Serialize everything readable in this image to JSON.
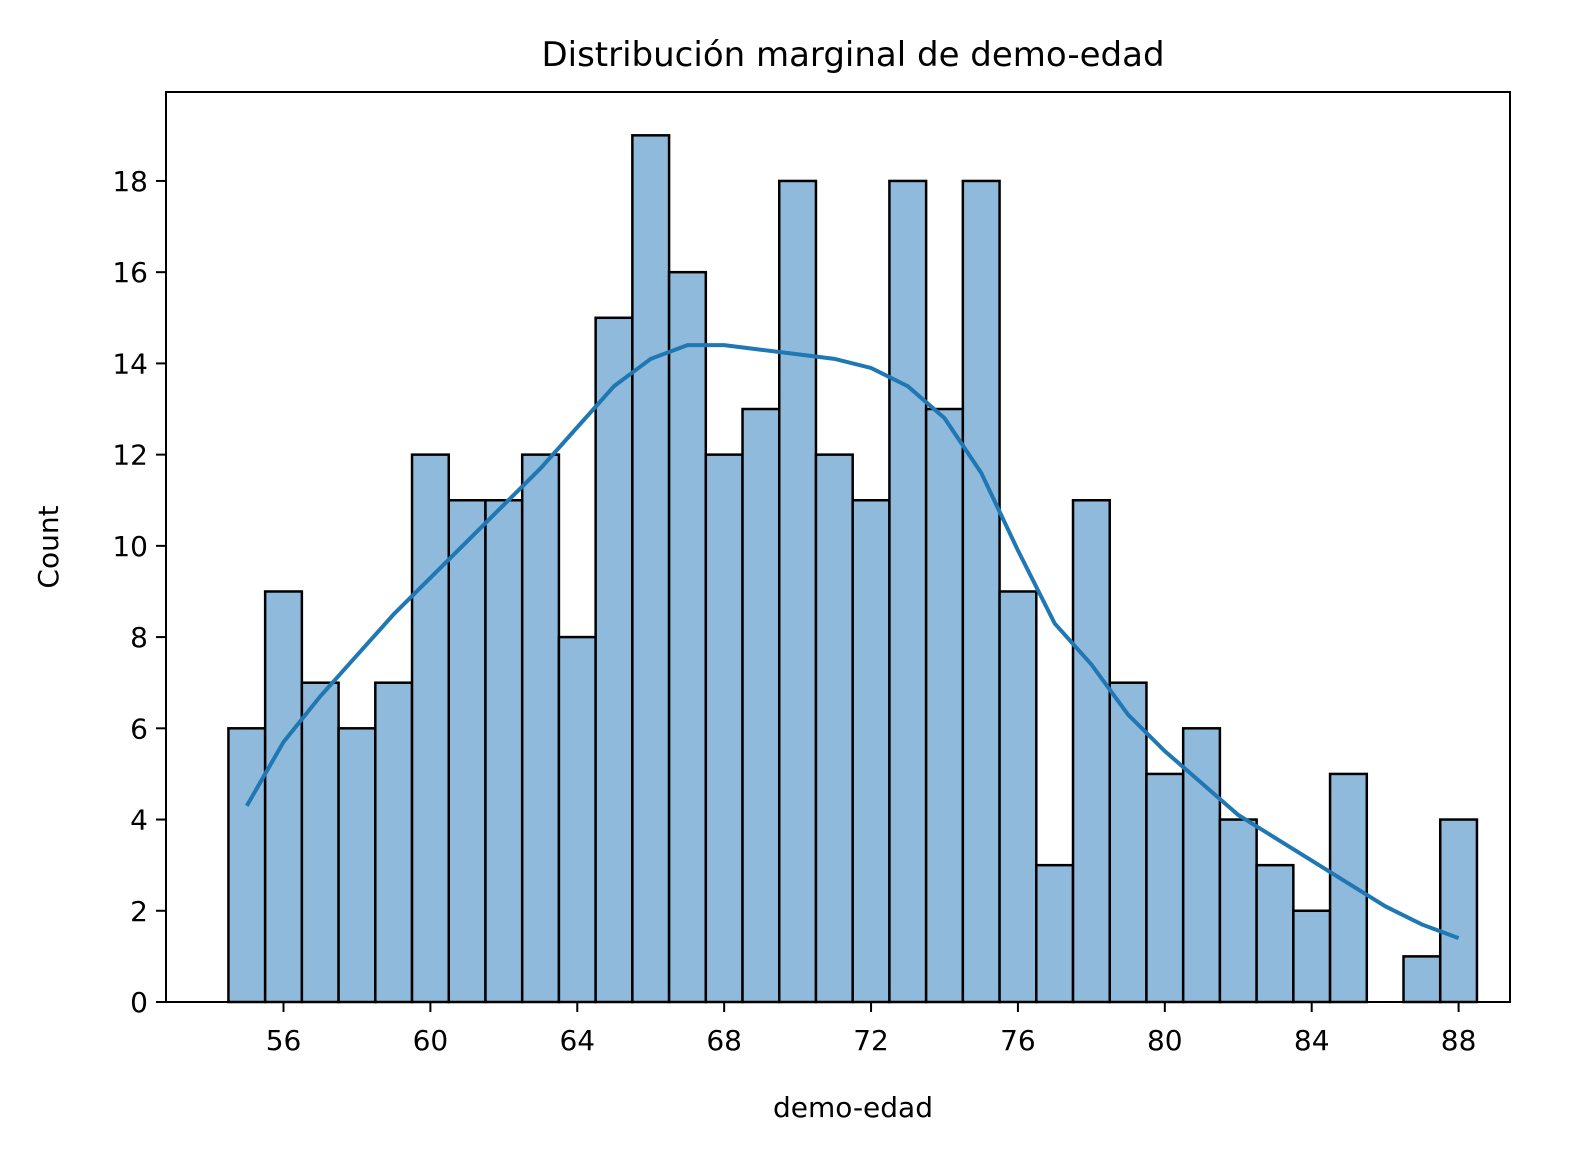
{
  "chart_data": {
    "type": "histogram",
    "title": "Distribución marginal de demo-edad",
    "xlabel": "demo-edad",
    "ylabel": "Count",
    "bins": [
      54.5,
      55.5,
      56.5,
      57.5,
      58.5,
      59.5,
      60.5,
      61.5,
      62.5,
      63.5,
      64.5,
      65.5,
      66.5,
      67.5,
      68.5,
      69.5,
      70.5,
      71.5,
      72.5,
      73.5,
      74.5,
      75.5,
      76.5,
      77.5,
      78.5,
      79.5,
      80.5,
      81.5,
      82.5,
      83.5,
      84.5,
      85.5,
      86.5,
      87.5,
      88.5
    ],
    "counts": [
      6,
      9,
      7,
      6,
      7,
      12,
      11,
      11,
      12,
      8,
      15,
      19,
      16,
      12,
      13,
      18,
      12,
      11,
      18,
      13,
      18,
      9,
      3,
      11,
      7,
      5,
      6,
      4,
      3,
      2,
      5,
      0,
      1,
      4
    ],
    "color": "#8fbadb",
    "edgecolor": "#000000",
    "kde": {
      "color": "#1f77b4",
      "x": [
        55,
        56,
        57,
        58,
        59,
        60,
        61,
        62,
        63,
        64,
        65,
        66,
        67,
        68,
        69,
        70,
        71,
        72,
        73,
        74,
        75,
        76,
        77,
        78,
        79,
        80,
        81,
        82,
        83,
        84,
        85,
        86,
        87,
        88
      ],
      "values": [
        4.3,
        5.7,
        6.7,
        7.6,
        8.5,
        9.3,
        10.1,
        10.9,
        11.7,
        12.6,
        13.5,
        14.1,
        14.4,
        14.4,
        14.3,
        14.2,
        14.1,
        13.9,
        13.5,
        12.8,
        11.6,
        9.9,
        8.3,
        7.4,
        6.3,
        5.5,
        4.8,
        4.1,
        3.6,
        3.1,
        2.6,
        2.1,
        1.7,
        1.4
      ]
    },
    "xlim": [
      52.8,
      89.4
    ],
    "ylim": [
      0,
      19.95
    ],
    "xticks": [
      56,
      60,
      64,
      68,
      72,
      76,
      80,
      84,
      88
    ],
    "yticks": [
      0,
      2,
      4,
      6,
      8,
      10,
      12,
      14,
      16,
      18
    ]
  }
}
